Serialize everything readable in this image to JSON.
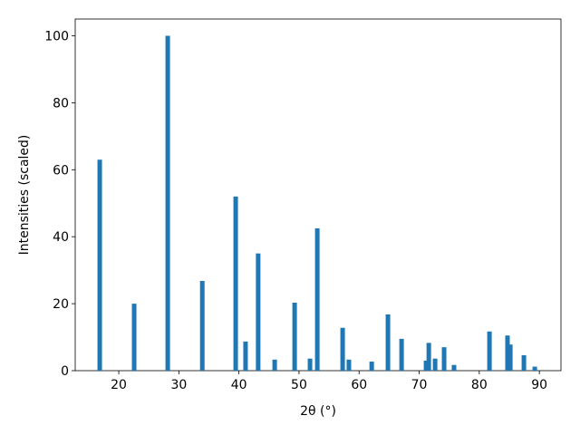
{
  "chart_data": {
    "type": "bar",
    "xlabel": "2θ (°)",
    "ylabel": "Intensities (scaled)",
    "x": [
      16.83,
      22.56,
      28.15,
      33.9,
      39.46,
      41.1,
      43.2,
      45.95,
      49.27,
      51.83,
      53.04,
      57.26,
      58.3,
      62.1,
      64.8,
      67.07,
      71.14,
      71.6,
      72.65,
      74.15,
      75.8,
      81.7,
      84.7,
      85.17,
      87.43,
      89.24
    ],
    "values": [
      63,
      20,
      100,
      26.8,
      52,
      8.7,
      35,
      3.3,
      20.3,
      3.6,
      42.5,
      12.8,
      3.3,
      2.7,
      16.8,
      9.5,
      3,
      8.3,
      3.6,
      7,
      1.7,
      11.7,
      10.5,
      7.8,
      4.6,
      1.2
    ],
    "color": "#1f77b4",
    "xlim": [
      12.75,
      93.6
    ],
    "ylim": [
      0,
      105
    ],
    "xticks": [
      20,
      30,
      40,
      50,
      60,
      70,
      80,
      90
    ],
    "yticks": [
      0,
      20,
      40,
      60,
      80,
      100
    ]
  }
}
